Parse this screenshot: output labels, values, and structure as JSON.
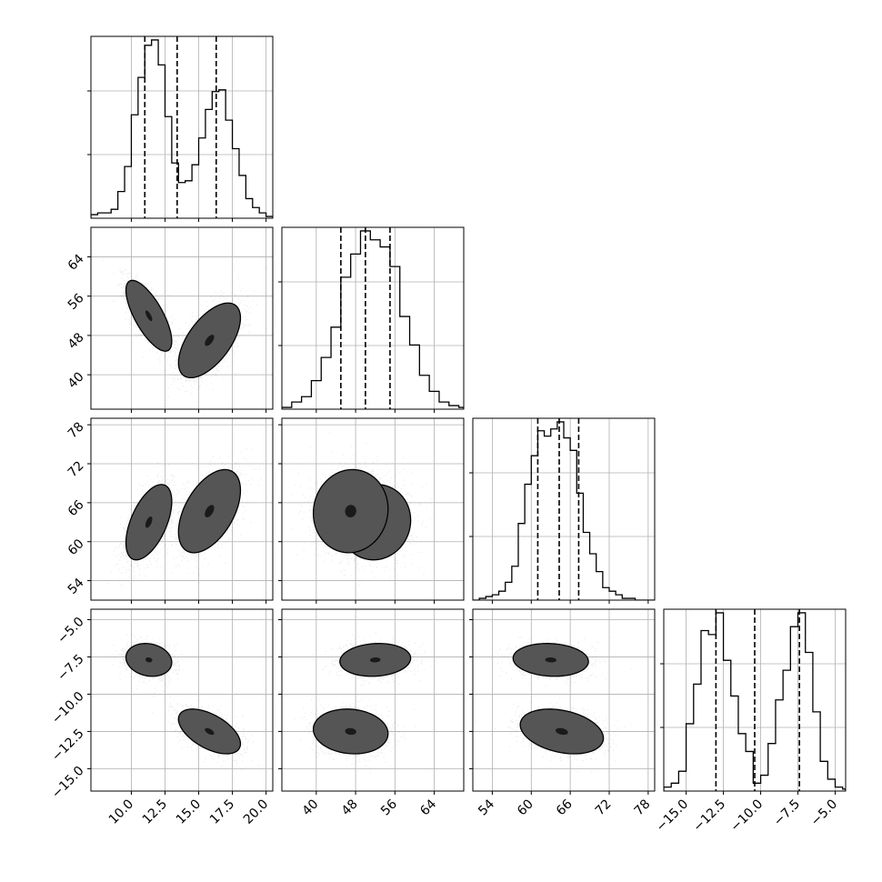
{
  "chart_data": {
    "type": "corner",
    "parameters": [
      {
        "range": [
          7.0,
          20.5
        ],
        "ticks": [
          10.0,
          12.5,
          15.0,
          17.5,
          20.0
        ],
        "tick_labels": [
          "10.0",
          "12.5",
          "15.0",
          "17.5",
          "20.0"
        ],
        "quantiles": [
          11.0,
          13.4,
          16.3
        ],
        "hist_bin_edges": [
          7.0,
          7.5,
          8.0,
          8.5,
          9.0,
          9.5,
          10.0,
          10.5,
          11.0,
          11.5,
          12.0,
          12.5,
          13.0,
          13.5,
          14.0,
          14.5,
          15.0,
          15.5,
          16.0,
          16.5,
          17.0,
          17.5,
          18.0,
          18.5,
          19.0,
          19.5,
          20.0,
          20.5
        ],
        "hist_counts": [
          0.02,
          0.03,
          0.03,
          0.05,
          0.15,
          0.29,
          0.58,
          0.79,
          0.97,
          1.0,
          0.86,
          0.57,
          0.31,
          0.2,
          0.21,
          0.3,
          0.45,
          0.61,
          0.71,
          0.72,
          0.55,
          0.39,
          0.24,
          0.11,
          0.06,
          0.03,
          0.01
        ]
      },
      {
        "range": [
          33,
          70
        ],
        "ticks": [
          40,
          48,
          56,
          64
        ],
        "tick_labels": [
          "40",
          "48",
          "56",
          "64"
        ],
        "quantiles": [
          45.0,
          50.0,
          55.0
        ],
        "hist_bin_edges": [
          33.0,
          35.0,
          37.0,
          39.0,
          41.0,
          43.0,
          45.0,
          47.0,
          49.0,
          51.0,
          53.0,
          55.0,
          57.0,
          59.0,
          61.0,
          63.0,
          65.0,
          67.0,
          69.0,
          70.0
        ],
        "hist_counts": [
          0.01,
          0.04,
          0.07,
          0.16,
          0.29,
          0.46,
          0.74,
          0.87,
          1.0,
          0.95,
          0.91,
          0.8,
          0.52,
          0.36,
          0.19,
          0.1,
          0.04,
          0.02,
          0.01
        ]
      },
      {
        "range": [
          51,
          79
        ],
        "ticks": [
          54,
          60,
          66,
          72,
          78
        ],
        "tick_labels": [
          "54",
          "60",
          "66",
          "72",
          "78"
        ],
        "quantiles": [
          61.0,
          64.3,
          67.3
        ],
        "hist_bin_edges": [
          51.0,
          52.0,
          53.0,
          54.0,
          55.0,
          56.0,
          57.0,
          58.0,
          59.0,
          60.0,
          61.0,
          62.0,
          63.0,
          64.0,
          65.0,
          66.0,
          67.0,
          68.0,
          69.0,
          70.0,
          71.0,
          72.0,
          73.0,
          74.0,
          75.0,
          76.0,
          77.0,
          78.0,
          79.0
        ],
        "hist_counts": [
          0.0,
          0.01,
          0.02,
          0.03,
          0.05,
          0.1,
          0.19,
          0.43,
          0.65,
          0.81,
          0.95,
          0.92,
          0.96,
          1.0,
          0.91,
          0.84,
          0.6,
          0.38,
          0.26,
          0.16,
          0.07,
          0.05,
          0.03,
          0.01,
          0.01,
          0.0,
          0.0,
          0.0
        ]
      },
      {
        "range": [
          -16.5,
          -4.3
        ],
        "ticks": [
          -15.0,
          -12.5,
          -10.0,
          -7.5,
          -5.0
        ],
        "tick_labels": [
          "−15.0",
          "−12.5",
          "−10.0",
          "−7.5",
          "−5.0"
        ],
        "quantiles": [
          -13.0,
          -10.4,
          -7.4
        ],
        "hist_bin_edges": [
          -16.5,
          -16.0,
          -15.5,
          -15.0,
          -14.5,
          -14.0,
          -13.5,
          -13.0,
          -12.5,
          -12.0,
          -11.5,
          -11.0,
          -10.5,
          -10.0,
          -9.5,
          -9.0,
          -8.5,
          -8.0,
          -7.5,
          -7.0,
          -6.5,
          -6.0,
          -5.5,
          -5.0,
          -4.5,
          -4.3
        ],
        "hist_counts": [
          0.02,
          0.04,
          0.1,
          0.34,
          0.54,
          0.81,
          0.79,
          0.9,
          0.66,
          0.48,
          0.29,
          0.2,
          0.04,
          0.08,
          0.24,
          0.46,
          0.61,
          0.83,
          0.9,
          0.7,
          0.4,
          0.15,
          0.06,
          0.02,
          0.01
        ]
      }
    ],
    "clusters": [
      {
        "mean": [
          11.3,
          52.0,
          63.0,
          -7.7
        ],
        "sd": [
          0.85,
          3.6,
          2.9,
          0.55
        ],
        "corr": {
          "0-1": -0.72,
          "0-2": 0.55,
          "0-3": -0.15,
          "1-2": 0.05,
          "1-3": 0.1,
          "2-3": -0.1
        }
      },
      {
        "mean": [
          15.8,
          47.0,
          64.7,
          -12.5
        ],
        "sd": [
          1.15,
          3.8,
          3.2,
          0.75
        ],
        "corr": {
          "0-1": 0.6,
          "0-2": 0.5,
          "0-3": -0.55,
          "1-2": 0.05,
          "1-3": -0.1,
          "2-3": -0.3
        }
      }
    ],
    "contour_levels": [
      0.118,
      0.393,
      0.675,
      0.865
    ],
    "grid": true,
    "legend": "none"
  }
}
